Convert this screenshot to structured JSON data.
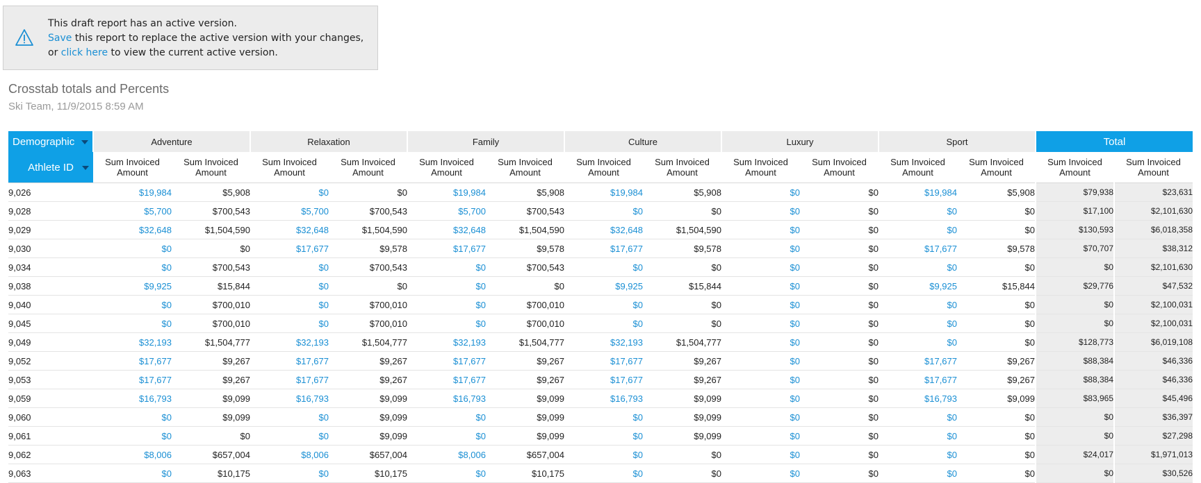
{
  "banner": {
    "line1": "This draft report has an active version.",
    "save_link": "Save",
    "line2_rest": " this report to replace the active version with your changes,",
    "or_text": "or ",
    "click_link": "click here",
    "line3_rest": " to view the current active version.",
    "icon": "warning-triangle-icon"
  },
  "report": {
    "title": "Crosstab totals and Percents",
    "subtitle": "Ski Team, 11/9/2015 8:59 AM"
  },
  "table": {
    "row_dimension": "Demographic",
    "column_dimension": "Athlete ID",
    "groups": [
      "Adventure",
      "Relaxation",
      "Family",
      "Culture",
      "Luxury",
      "Sport",
      "Total"
    ],
    "measure_label_line1": "Sum Invoiced",
    "measure_label_line2": "Amount",
    "rows": [
      {
        "id": "9,026",
        "cells": [
          "$19,984",
          "$5,908",
          "$0",
          "$0",
          "$19,984",
          "$5,908",
          "$19,984",
          "$5,908",
          "$0",
          "$0",
          "$19,984",
          "$5,908",
          "$79,938",
          "$23,631"
        ]
      },
      {
        "id": "9,028",
        "cells": [
          "$5,700",
          "$700,543",
          "$5,700",
          "$700,543",
          "$5,700",
          "$700,543",
          "$0",
          "$0",
          "$0",
          "$0",
          "$0",
          "$0",
          "$17,100",
          "$2,101,630"
        ]
      },
      {
        "id": "9,029",
        "cells": [
          "$32,648",
          "$1,504,590",
          "$32,648",
          "$1,504,590",
          "$32,648",
          "$1,504,590",
          "$32,648",
          "$1,504,590",
          "$0",
          "$0",
          "$0",
          "$0",
          "$130,593",
          "$6,018,358"
        ]
      },
      {
        "id": "9,030",
        "cells": [
          "$0",
          "$0",
          "$17,677",
          "$9,578",
          "$17,677",
          "$9,578",
          "$17,677",
          "$9,578",
          "$0",
          "$0",
          "$17,677",
          "$9,578",
          "$70,707",
          "$38,312"
        ]
      },
      {
        "id": "9,034",
        "cells": [
          "$0",
          "$700,543",
          "$0",
          "$700,543",
          "$0",
          "$700,543",
          "$0",
          "$0",
          "$0",
          "$0",
          "$0",
          "$0",
          "$0",
          "$2,101,630"
        ]
      },
      {
        "id": "9,038",
        "cells": [
          "$9,925",
          "$15,844",
          "$0",
          "$0",
          "$0",
          "$0",
          "$9,925",
          "$15,844",
          "$0",
          "$0",
          "$9,925",
          "$15,844",
          "$29,776",
          "$47,532"
        ]
      },
      {
        "id": "9,040",
        "cells": [
          "$0",
          "$700,010",
          "$0",
          "$700,010",
          "$0",
          "$700,010",
          "$0",
          "$0",
          "$0",
          "$0",
          "$0",
          "$0",
          "$0",
          "$2,100,031"
        ]
      },
      {
        "id": "9,045",
        "cells": [
          "$0",
          "$700,010",
          "$0",
          "$700,010",
          "$0",
          "$700,010",
          "$0",
          "$0",
          "$0",
          "$0",
          "$0",
          "$0",
          "$0",
          "$2,100,031"
        ]
      },
      {
        "id": "9,049",
        "cells": [
          "$32,193",
          "$1,504,777",
          "$32,193",
          "$1,504,777",
          "$32,193",
          "$1,504,777",
          "$32,193",
          "$1,504,777",
          "$0",
          "$0",
          "$0",
          "$0",
          "$128,773",
          "$6,019,108"
        ]
      },
      {
        "id": "9,052",
        "cells": [
          "$17,677",
          "$9,267",
          "$17,677",
          "$9,267",
          "$17,677",
          "$9,267",
          "$17,677",
          "$9,267",
          "$0",
          "$0",
          "$17,677",
          "$9,267",
          "$88,384",
          "$46,336"
        ]
      },
      {
        "id": "9,053",
        "cells": [
          "$17,677",
          "$9,267",
          "$17,677",
          "$9,267",
          "$17,677",
          "$9,267",
          "$17,677",
          "$9,267",
          "$0",
          "$0",
          "$17,677",
          "$9,267",
          "$88,384",
          "$46,336"
        ]
      },
      {
        "id": "9,059",
        "cells": [
          "$16,793",
          "$9,099",
          "$16,793",
          "$9,099",
          "$16,793",
          "$9,099",
          "$16,793",
          "$9,099",
          "$0",
          "$0",
          "$16,793",
          "$9,099",
          "$83,965",
          "$45,496"
        ]
      },
      {
        "id": "9,060",
        "cells": [
          "$0",
          "$9,099",
          "$0",
          "$9,099",
          "$0",
          "$9,099",
          "$0",
          "$9,099",
          "$0",
          "$0",
          "$0",
          "$0",
          "$0",
          "$36,397"
        ]
      },
      {
        "id": "9,061",
        "cells": [
          "$0",
          "$0",
          "$0",
          "$9,099",
          "$0",
          "$9,099",
          "$0",
          "$9,099",
          "$0",
          "$0",
          "$0",
          "$0",
          "$0",
          "$27,298"
        ]
      },
      {
        "id": "9,062",
        "cells": [
          "$8,006",
          "$657,004",
          "$8,006",
          "$657,004",
          "$8,006",
          "$657,004",
          "$0",
          "$0",
          "$0",
          "$0",
          "$0",
          "$0",
          "$24,017",
          "$1,971,013"
        ]
      },
      {
        "id": "9,063",
        "cells": [
          "$0",
          "$10,175",
          "$0",
          "$10,175",
          "$0",
          "$10,175",
          "$0",
          "$0",
          "$0",
          "$0",
          "$0",
          "$0",
          "$0",
          "$30,526"
        ]
      }
    ]
  },
  "colors": {
    "accent": "#0fa0e6",
    "link": "#1a8fd4",
    "header_grey": "#ececec",
    "total_bg": "#ededed"
  }
}
